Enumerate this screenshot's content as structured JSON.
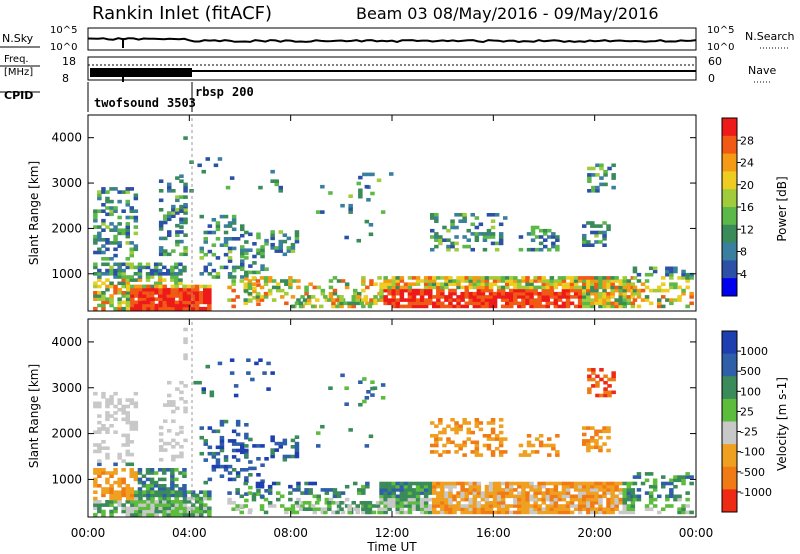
{
  "header": {
    "station": "Rankin Inlet (fitACF)",
    "beam": "Beam 03 08/May/2016 - 09/May/2016"
  },
  "noise_panel": {
    "left_label": "N.Sky",
    "right_label": "N.Search",
    "left_ticks": [
      "10^5",
      "10^0"
    ],
    "right_ticks": [
      "10^5",
      "10^0"
    ]
  },
  "freq_panel": {
    "left_label_1": "Freq.",
    "left_label_2": "[MHz]",
    "left_ticks": [
      "18",
      "8"
    ],
    "right_label": "Nave",
    "right_ticks": [
      "60",
      "0"
    ]
  },
  "cpid": {
    "label": "CPID",
    "entries": [
      {
        "name": "twofsound",
        "id": "3503",
        "start_hour": 0.0
      },
      {
        "name": "rbsp",
        "id": "200",
        "start_hour": 4.0
      }
    ]
  },
  "chart_data": [
    {
      "type": "heatmap",
      "title": "",
      "xlabel": "",
      "ylabel": "Slant Range [km]",
      "xlim": [
        0,
        24
      ],
      "ylim": [
        180,
        4500
      ],
      "x_tick_labels": [
        "00:00",
        "04:00",
        "08:00",
        "12:00",
        "16:00",
        "20:00",
        "00:00"
      ],
      "y_tick_labels": [
        "1000",
        "2000",
        "3000",
        "4000"
      ],
      "colorbar": {
        "label": "Power [dB]",
        "ticks": [
          "4",
          "8",
          "12",
          "16",
          "20",
          "24",
          "28"
        ],
        "range": [
          0,
          30
        ],
        "colors": [
          "#0000ee",
          "#2c4fa8",
          "#3a7ea0",
          "#3a8a5a",
          "#5cb848",
          "#a0cc3c",
          "#eecc22",
          "#f49a14",
          "#f05a14",
          "#ee1a1a"
        ]
      }
    },
    {
      "type": "heatmap",
      "title": "",
      "xlabel": "Time UT",
      "ylabel": "Slant Range [km]",
      "xlim": [
        0,
        24
      ],
      "ylim": [
        180,
        4500
      ],
      "x_tick_labels": [
        "00:00",
        "04:00",
        "08:00",
        "12:00",
        "16:00",
        "20:00",
        "00:00"
      ],
      "y_tick_labels": [
        "1000",
        "2000",
        "3000",
        "4000"
      ],
      "colorbar": {
        "label": "Velocity [m s-1]",
        "ticks": [
          "1000",
          "500",
          "100",
          "25",
          "-25",
          "-100",
          "-500",
          "-1000"
        ],
        "colors": [
          "#1f3fb0",
          "#2f5fa8",
          "#3a8a5a",
          "#5cbc3c",
          "#c8c8c8",
          "#f0a020",
          "#f07a14",
          "#ee2a14"
        ]
      }
    }
  ]
}
